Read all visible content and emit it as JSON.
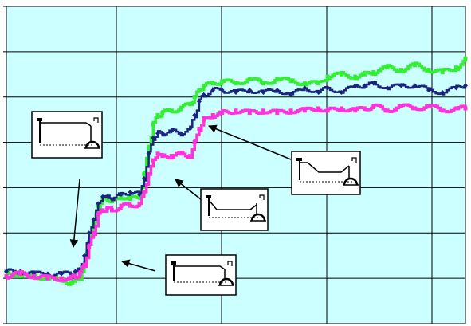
{
  "chart_data": {
    "type": "line",
    "title": "",
    "xlabel": "",
    "ylabel": "",
    "grid": true,
    "legend": "none",
    "xlim": [
      0,
      100
    ],
    "ylim": [
      0,
      7
    ],
    "colors": {
      "background": "#ccffff",
      "grid": "#000000",
      "green": "#33ee33",
      "navy": "#1a237e",
      "magenta": "#ff33dd"
    },
    "series": [
      {
        "color": "#33ee33",
        "marker": "square",
        "x": [
          0,
          3,
          6,
          9,
          12,
          14,
          15,
          16,
          17,
          18,
          19,
          20,
          21,
          22,
          23,
          25,
          27,
          29,
          30,
          31,
          32,
          33,
          34,
          36,
          38,
          40,
          41,
          42,
          43,
          45,
          47,
          50,
          53,
          56,
          59,
          62,
          65,
          68,
          70,
          73,
          76,
          78,
          80,
          83,
          86,
          89,
          92,
          95,
          98,
          100
        ],
        "y": [
          1.15,
          1.05,
          1.05,
          1.0,
          0.95,
          0.9,
          0.95,
          1.0,
          1.3,
          1.8,
          2.2,
          2.6,
          2.75,
          2.75,
          2.7,
          2.8,
          2.75,
          2.8,
          3.3,
          3.9,
          4.4,
          4.6,
          4.65,
          4.7,
          4.75,
          4.85,
          5.0,
          5.15,
          5.25,
          5.3,
          5.35,
          5.3,
          5.4,
          5.3,
          5.4,
          5.35,
          5.3,
          5.3,
          5.45,
          5.5,
          5.45,
          5.5,
          5.55,
          5.65,
          5.6,
          5.7,
          5.6,
          5.55,
          5.65,
          5.85
        ]
      },
      {
        "color": "#1a237e",
        "marker": "diamond",
        "x": [
          0,
          3,
          6,
          9,
          12,
          14,
          15,
          16,
          17,
          18,
          19,
          20,
          21,
          22,
          23,
          25,
          27,
          29,
          30,
          31,
          32,
          33,
          34,
          36,
          38,
          40,
          41,
          42,
          43,
          45,
          47,
          50,
          53,
          56,
          59,
          62,
          65,
          68,
          70,
          73,
          76,
          78,
          80,
          83,
          86,
          89,
          92,
          95,
          98,
          100
        ],
        "y": [
          1.15,
          1.15,
          1.1,
          1.1,
          1.1,
          1.1,
          1.15,
          1.2,
          1.5,
          2.0,
          2.3,
          2.65,
          2.8,
          2.8,
          2.75,
          2.85,
          2.9,
          2.85,
          3.2,
          3.75,
          4.1,
          4.2,
          4.2,
          4.25,
          4.2,
          4.3,
          4.6,
          4.9,
          5.05,
          5.15,
          5.15,
          5.1,
          5.15,
          5.1,
          5.15,
          5.05,
          5.2,
          5.1,
          5.2,
          5.1,
          5.25,
          5.25,
          5.3,
          5.2,
          5.25,
          5.25,
          5.15,
          5.1,
          5.2,
          5.25
        ]
      },
      {
        "color": "#ff33dd",
        "marker": "square",
        "x": [
          0,
          3,
          6,
          9,
          12,
          14,
          15,
          16,
          17,
          18,
          19,
          20,
          21,
          22,
          23,
          25,
          27,
          29,
          30,
          31,
          32,
          33,
          34,
          36,
          38,
          40,
          41,
          42,
          43,
          45,
          47,
          50,
          53,
          56,
          59,
          62,
          65,
          68,
          70,
          73,
          76,
          78,
          80,
          83,
          86,
          89,
          92,
          95,
          98,
          100
        ],
        "y": [
          1.05,
          1.1,
          1.05,
          1.0,
          1.0,
          1.0,
          1.05,
          1.1,
          1.3,
          1.7,
          2.0,
          2.4,
          2.5,
          2.55,
          2.5,
          2.6,
          2.6,
          2.65,
          2.9,
          3.3,
          3.6,
          3.75,
          3.7,
          3.7,
          3.75,
          3.7,
          4.0,
          4.3,
          4.5,
          4.6,
          4.65,
          4.7,
          4.65,
          4.7,
          4.65,
          4.7,
          4.7,
          4.75,
          4.7,
          4.75,
          4.7,
          4.75,
          4.8,
          4.7,
          4.8,
          4.75,
          4.8,
          4.7,
          4.75,
          4.75
        ]
      }
    ],
    "annotations": [
      {
        "icon": "trolley-diagram-flat-icon"
      },
      {
        "icon": "trolley-diagram-flat-icon"
      },
      {
        "icon": "trolley-diagram-dip-icon"
      },
      {
        "icon": "trolley-diagram-slope-icon"
      }
    ]
  }
}
